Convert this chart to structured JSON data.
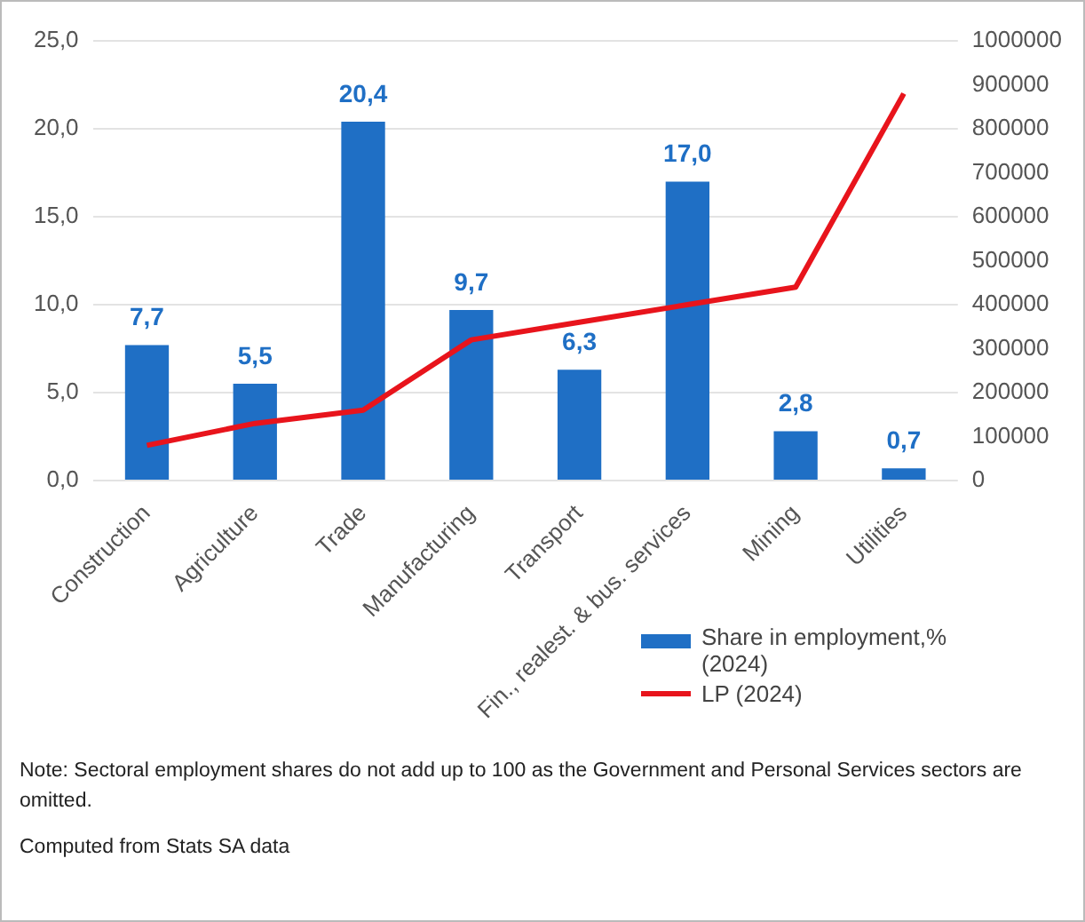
{
  "chart_data": {
    "type": "bar",
    "categories": [
      "Construction",
      "Agriculture",
      "Trade",
      "Manufacturing",
      "Transport",
      "Fin., realest. & bus. services",
      "Mining",
      "Utilities"
    ],
    "series": [
      {
        "name": "Share in employment,% (2024)",
        "color": "#1f6fc5",
        "values": [
          7.7,
          5.5,
          20.4,
          9.7,
          6.3,
          17.0,
          2.8,
          0.7
        ],
        "value_labels": [
          "7,7",
          "5,5",
          "20,4",
          "9,7",
          "6,3",
          "17,0",
          "2,8",
          "0,7"
        ]
      },
      {
        "name": "LP (2024)",
        "type": "line",
        "axis": "y2",
        "color": "#e8141c",
        "values": [
          80000,
          130000,
          160000,
          320000,
          360000,
          400000,
          440000,
          880000
        ]
      }
    ],
    "ylim": [
      0,
      25
    ],
    "yticks": [
      {
        "value": 0,
        "label": "0,0"
      },
      {
        "value": 5,
        "label": "5,0"
      },
      {
        "value": 10,
        "label": "10,0"
      },
      {
        "value": 15,
        "label": "15,0"
      },
      {
        "value": 20,
        "label": "20,0"
      },
      {
        "value": 25,
        "label": "25,0"
      }
    ],
    "y2lim": [
      0,
      1000000
    ],
    "y2ticks": [
      0,
      100000,
      200000,
      300000,
      400000,
      500000,
      600000,
      700000,
      800000,
      900000,
      1000000
    ],
    "grid": "y",
    "legend": "bottom right",
    "marker": "none",
    "annotations": [
      "Note: Sectoral employment shares do not add up to 100 as the Government and Personal Services sectors are omitted.",
      "Computed from Stats SA data"
    ]
  }
}
